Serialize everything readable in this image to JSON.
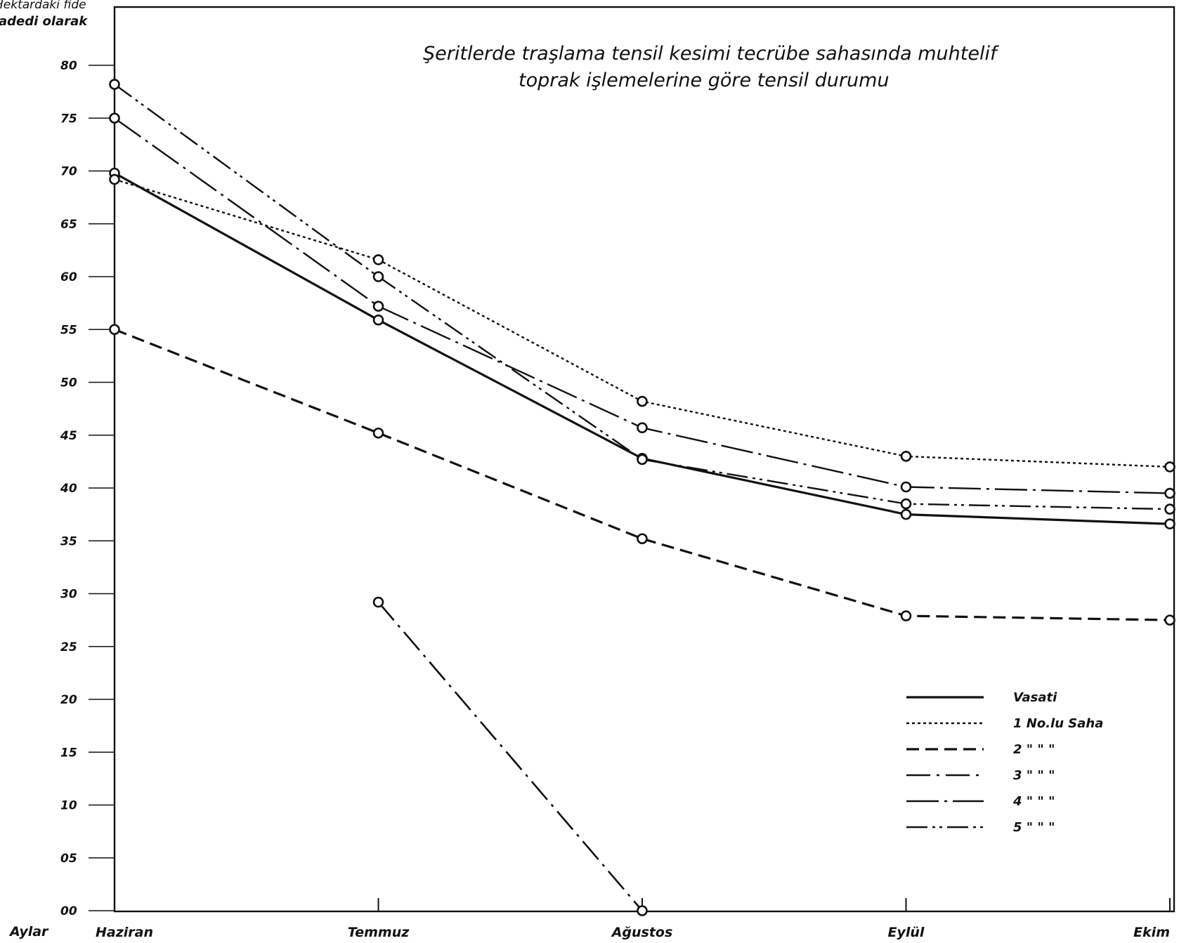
{
  "chart_data": {
    "type": "line",
    "title": "Şeritlerde traşlama tensil kesimi tecrübe sahasında muhtelif",
    "subtitle": "toprak işlemelerine göre tensil durumu",
    "ylabel_lines": [
      "Hektardaki fide",
      "adedi olarak"
    ],
    "xlabel": "Aylar",
    "categories": [
      "Haziran",
      "Temmuz",
      "Ağustos",
      "Eylül",
      "Ekim"
    ],
    "ylim": [
      0,
      80
    ],
    "yticks": [
      "00",
      "05",
      "10",
      "15",
      "20",
      "25",
      "30",
      "35",
      "40",
      "45",
      "50",
      "55",
      "60",
      "65",
      "70",
      "75",
      "80"
    ],
    "series": [
      {
        "name": "Vasati",
        "style": "solid",
        "values": [
          69.8,
          55.9,
          42.8,
          37.5,
          36.6
        ]
      },
      {
        "name": "1 No.lu Saha",
        "style": "dotted",
        "values": [
          69.2,
          61.6,
          48.2,
          43.0,
          42.0
        ]
      },
      {
        "name": "2 \" \" \"",
        "style": "dashed",
        "values": [
          55.0,
          45.2,
          35.2,
          27.9,
          27.5
        ]
      },
      {
        "name": "3 \" \" \"",
        "style": "dashdot",
        "values": [
          null,
          29.2,
          0.0,
          null,
          null
        ]
      },
      {
        "name": "4 \" \" \"",
        "style": "dashdotlong",
        "values": [
          75.0,
          57.2,
          45.7,
          40.1,
          39.5
        ]
      },
      {
        "name": "5 \" \" \"",
        "style": "dashdotdot",
        "values": [
          78.2,
          60.0,
          42.7,
          38.5,
          38.0
        ]
      }
    ],
    "grid": false,
    "legend_position": "bottom-right"
  }
}
